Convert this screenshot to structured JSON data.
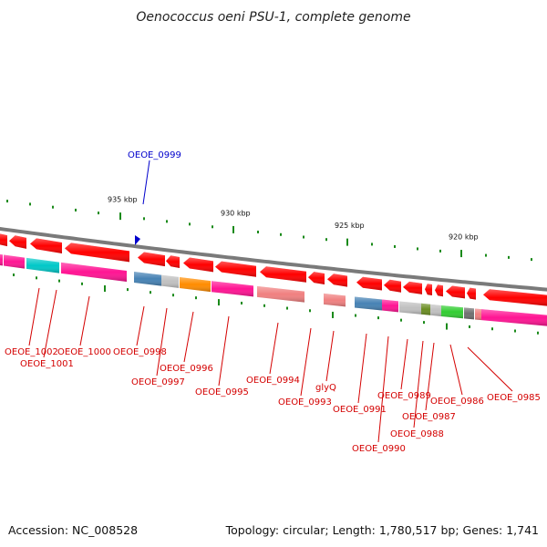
{
  "header": {
    "title": "Oenococcus oeni PSU-1, complete genome"
  },
  "footer": {
    "accession": "Accession: NC_008528",
    "summary": "Topology: circular; Length: 1,780,517 bp; Genes: 1,741"
  },
  "ruler": {
    "ticks": [
      {
        "label": "935 kbp",
        "kbp": 935
      },
      {
        "label": "930 kbp",
        "kbp": 930
      },
      {
        "label": "925 kbp",
        "kbp": 925
      },
      {
        "label": "920 kbp",
        "kbp": 920
      }
    ]
  },
  "highlight": {
    "label": "OEOE_0999"
  },
  "colors": {
    "forward_strand": "#ff0000",
    "backbone": "#777777",
    "gene_label": "#d40000",
    "highlight_label": "#0000cc",
    "tick": "#1a8a1a"
  },
  "genes": [
    {
      "label": "OEOE_1002",
      "color": "#ff1493"
    },
    {
      "label": "OEOE_1001",
      "color": "#00c8c8"
    },
    {
      "label": "OEOE_1000",
      "color": "#ff1493"
    },
    {
      "label": "OEOE_0998",
      "color": "#4682b4"
    },
    {
      "label": "OEOE_0997",
      "color": "#c0c0c0"
    },
    {
      "label": "OEOE_0996",
      "color": "#ff8c00"
    },
    {
      "label": "OEOE_0995",
      "color": "#ff1493"
    },
    {
      "label": "OEOE_0994",
      "color": "#f08080"
    },
    {
      "label": "OEOE_0993",
      "color": "#ffffff"
    },
    {
      "label": "glyQ",
      "color": "#f08080"
    },
    {
      "label": "OEOE_0991",
      "color": "#4682b4"
    },
    {
      "label": "OEOE_0990",
      "color": "#ff1493"
    },
    {
      "label": "OEOE_0989",
      "color": "#c0c0c0"
    },
    {
      "label": "OEOE_0988",
      "color": "#6b8e23"
    },
    {
      "label": "OEOE_0987",
      "color": "#c0c0c0"
    },
    {
      "label": "OEOE_0986",
      "color": "#32cd32"
    },
    {
      "label": "OEOE_0985",
      "color": "#ff1493"
    }
  ]
}
